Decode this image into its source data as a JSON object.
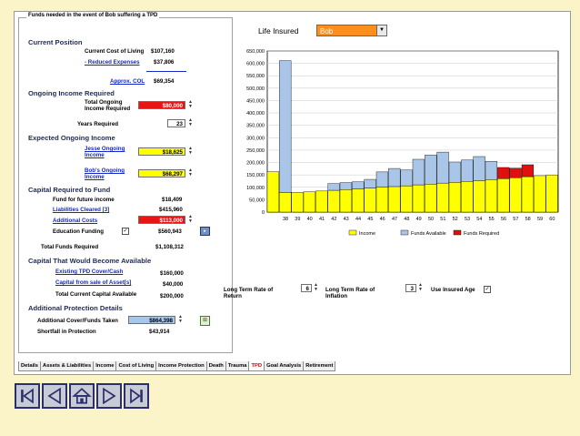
{
  "window": {
    "group_title": "Funds needed in the event of Bob suffering a TPD",
    "life_insured_label": "Life Insured",
    "life_insured_value": "Bob"
  },
  "current_position": {
    "heading": "Current Position",
    "cost_of_living_label": "Current Cost of Living",
    "cost_of_living_value": "$107,160",
    "reduced_expenses_label": "- Reduced Expenses",
    "reduced_expenses_value": "$37,806",
    "approx_col_label": "Approx. COL",
    "approx_col_value": "$69,354"
  },
  "ongoing_income": {
    "heading": "Ongoing Income Required",
    "total_label_1": "Total Ongoing",
    "total_label_2": "Income Required",
    "total_value": "$80,000",
    "years_label": "Years Required",
    "years_value": "23"
  },
  "expected_income": {
    "heading": "Expected Ongoing Income",
    "jesse_label_1": "Jesse Ongoing",
    "jesse_label_2": "Income",
    "jesse_value": "$18,625",
    "bob_label_1": "Bob's Ongoing",
    "bob_label_2": "Income",
    "bob_value": "$68,297"
  },
  "capital_required": {
    "heading": "Capital Required to Fund",
    "future_income_label": "Fund for future income",
    "future_income_value": "$18,409",
    "liabilities_label": "Liabilities Cleared [3]",
    "liabilities_value": "$415,960",
    "additional_costs_label": "Additional Costs",
    "additional_costs_value": "$113,000",
    "education_label": "Education Funding",
    "education_checked": "✓",
    "education_value": "$560,943",
    "total_label": "Total Funds Required",
    "total_value": "$1,108,312"
  },
  "capital_available": {
    "heading": "Capital That Would Become Available",
    "tpd_cover_label": "Existing TPD Cover/Cash",
    "tpd_cover_value": "$160,000",
    "sale_assets_label": "Capital from sale of Asset[s]",
    "sale_assets_value": "$40,000",
    "total_label": "Total Current Capital Available",
    "total_value": "$200,000"
  },
  "additional_protection": {
    "heading": "Additional Protection Details",
    "cover_label": "Additional Cover/Funds Taken",
    "cover_value": "$864,398",
    "shortfall_label": "Shortfall in Protection",
    "shortfall_value": "$43,914"
  },
  "controls": {
    "return_label_1": "Long Term Rate of",
    "return_label_2": "Return",
    "return_value": "6",
    "inflation_label_1": "Long Term Rate of",
    "inflation_label_2": "Inflation",
    "inflation_value": "3",
    "use_insured_age_label": "Use Insured Age",
    "use_insured_age_checked": "✓"
  },
  "tabs": [
    "Details",
    "Assets & Liabilities",
    "Income",
    "Cost of Living",
    "Income Protection",
    "Death",
    "Trauma",
    "TPD",
    "Goal Analysis",
    "Retirement"
  ],
  "active_tab": "TPD",
  "colors": {
    "income": "#ffff00",
    "funds_available": "#a9c6e8",
    "funds_required": "#e01010",
    "input_red": "#e81515",
    "input_yellow": "#ffff00",
    "input_blue": "#a9c6e8",
    "select_orange": "#ff8f1c",
    "background": "#fbf4c9"
  },
  "nav_icons": [
    "first-icon",
    "previous-icon",
    "home-icon",
    "next-icon",
    "last-icon"
  ],
  "chart_data": {
    "type": "bar",
    "stacked": true,
    "ylim": [
      0,
      650000
    ],
    "yticks": [
      "650,000",
      "600,000",
      "550,000",
      "500,000",
      "450,000",
      "400,000",
      "350,000",
      "300,000",
      "250,000",
      "200,000",
      "150,000",
      "100,000",
      "50,000",
      "0"
    ],
    "xticks": [
      "38",
      "39",
      "40",
      "41",
      "42",
      "43",
      "44",
      "45",
      "46",
      "47",
      "48",
      "49",
      "50",
      "51",
      "52",
      "53",
      "54",
      "55",
      "56",
      "57",
      "58",
      "59",
      "60"
    ],
    "legend_placement": "bottom",
    "grid": true,
    "bars": [
      {
        "x": "37",
        "income": 163000,
        "available": 0,
        "required": 0
      },
      {
        "x": "38",
        "income": 78000,
        "available": 533000,
        "required": 0
      },
      {
        "x": "39",
        "income": 80000,
        "available": 0,
        "required": 0
      },
      {
        "x": "40",
        "income": 82000,
        "available": 0,
        "required": 0
      },
      {
        "x": "41",
        "income": 85000,
        "available": 0,
        "required": 0
      },
      {
        "x": "42",
        "income": 88000,
        "available": 27000,
        "required": 0
      },
      {
        "x": "43",
        "income": 91000,
        "available": 28000,
        "required": 0
      },
      {
        "x": "44",
        "income": 94000,
        "available": 28000,
        "required": 0
      },
      {
        "x": "45",
        "income": 97000,
        "available": 35000,
        "required": 0
      },
      {
        "x": "46",
        "income": 100000,
        "available": 62000,
        "required": 0
      },
      {
        "x": "47",
        "income": 103000,
        "available": 73000,
        "required": 0
      },
      {
        "x": "48",
        "income": 106000,
        "available": 64000,
        "required": 0
      },
      {
        "x": "49",
        "income": 110000,
        "available": 103000,
        "required": 0
      },
      {
        "x": "50",
        "income": 113000,
        "available": 117000,
        "required": 0
      },
      {
        "x": "51",
        "income": 117000,
        "available": 125000,
        "required": 0
      },
      {
        "x": "52",
        "income": 120000,
        "available": 82000,
        "required": 0
      },
      {
        "x": "53",
        "income": 124000,
        "available": 86000,
        "required": 0
      },
      {
        "x": "54",
        "income": 127000,
        "available": 97000,
        "required": 0
      },
      {
        "x": "55",
        "income": 131000,
        "available": 74000,
        "required": 0
      },
      {
        "x": "56",
        "income": 135000,
        "available": 0,
        "required": 45000
      },
      {
        "x": "57",
        "income": 139000,
        "available": 0,
        "required": 38000
      },
      {
        "x": "58",
        "income": 143000,
        "available": 0,
        "required": 48000
      },
      {
        "x": "59",
        "income": 147000,
        "available": 0,
        "required": 0
      },
      {
        "x": "60",
        "income": 150000,
        "available": 0,
        "required": 0
      }
    ],
    "series": [
      {
        "name": "Income",
        "color": "#ffff00"
      },
      {
        "name": "Funds Available",
        "color": "#a9c6e8"
      },
      {
        "name": "Funds Required",
        "color": "#e01010"
      }
    ]
  }
}
